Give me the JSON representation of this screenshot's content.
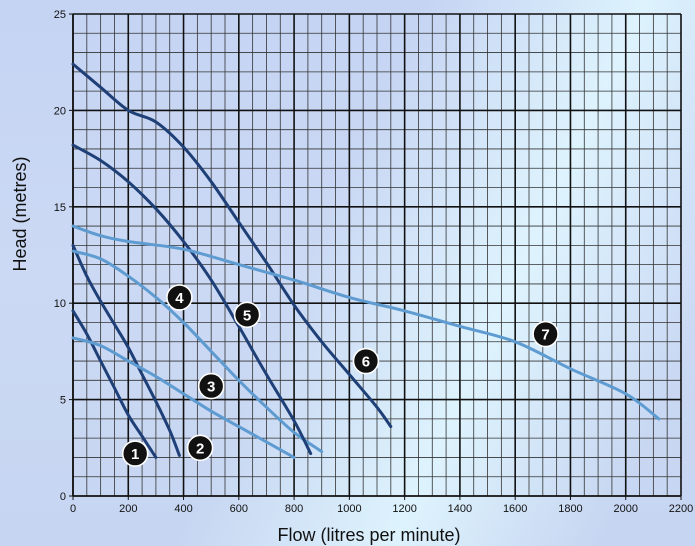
{
  "chart_data": {
    "type": "line",
    "title": "",
    "xlabel": "Flow (litres per minute)",
    "ylabel": "Head (metres)",
    "xlim": [
      0,
      2200
    ],
    "ylim": [
      0,
      25
    ],
    "x_ticks": [
      0,
      200,
      400,
      600,
      800,
      1000,
      1200,
      1400,
      1600,
      1800,
      2000,
      2200
    ],
    "y_ticks": [
      0,
      5,
      10,
      15,
      20,
      25
    ],
    "x_minor_step": 50,
    "y_minor_step": 1,
    "grid": true,
    "legend": "numbered badges on curves",
    "colors": {
      "dark": "#1f3f77",
      "light": "#5e9bd1",
      "grid_major": "#111111",
      "grid_minor": "#333333",
      "badge": "#111111"
    },
    "series": [
      {
        "label": "1",
        "color": "dark",
        "points": [
          [
            0,
            9.6
          ],
          [
            50,
            8.4
          ],
          [
            100,
            7.0
          ],
          [
            150,
            5.6
          ],
          [
            200,
            4.2
          ],
          [
            250,
            3.1
          ],
          [
            300,
            2.0
          ]
        ],
        "badge": [
          225,
          2.2
        ]
      },
      {
        "label": "2",
        "color": "dark",
        "points": [
          [
            0,
            13.0
          ],
          [
            50,
            11.4
          ],
          [
            100,
            10.1
          ],
          [
            150,
            8.9
          ],
          [
            200,
            7.7
          ],
          [
            250,
            6.3
          ],
          [
            300,
            4.9
          ],
          [
            350,
            3.4
          ],
          [
            385,
            2.1
          ]
        ],
        "badge": [
          460,
          2.5
        ]
      },
      {
        "label": "3",
        "color": "light",
        "points": [
          [
            0,
            8.2
          ],
          [
            100,
            7.8
          ],
          [
            200,
            7.0
          ],
          [
            300,
            6.2
          ],
          [
            400,
            5.3
          ],
          [
            500,
            4.4
          ],
          [
            600,
            3.6
          ],
          [
            700,
            2.8
          ],
          [
            800,
            2.0
          ]
        ],
        "badge": [
          500,
          5.7
        ]
      },
      {
        "label": "4",
        "color": "light",
        "points": [
          [
            0,
            12.7
          ],
          [
            100,
            12.3
          ],
          [
            200,
            11.4
          ],
          [
            300,
            10.3
          ],
          [
            400,
            9.0
          ],
          [
            500,
            7.5
          ],
          [
            600,
            6.0
          ],
          [
            700,
            4.6
          ],
          [
            800,
            3.3
          ],
          [
            900,
            2.3
          ]
        ],
        "badge": [
          385,
          10.3
        ]
      },
      {
        "label": "5",
        "color": "dark",
        "points": [
          [
            0,
            18.2
          ],
          [
            100,
            17.4
          ],
          [
            200,
            16.3
          ],
          [
            300,
            14.9
          ],
          [
            400,
            13.2
          ],
          [
            500,
            11.2
          ],
          [
            600,
            8.8
          ],
          [
            700,
            6.3
          ],
          [
            800,
            3.9
          ],
          [
            860,
            2.2
          ]
        ],
        "badge": [
          630,
          9.4
        ]
      },
      {
        "label": "6",
        "color": "dark",
        "points": [
          [
            0,
            22.4
          ],
          [
            100,
            21.2
          ],
          [
            200,
            20.0
          ],
          [
            300,
            19.4
          ],
          [
            400,
            18.1
          ],
          [
            500,
            16.3
          ],
          [
            600,
            14.2
          ],
          [
            700,
            12.1
          ],
          [
            800,
            9.9
          ],
          [
            900,
            8.0
          ],
          [
            1000,
            6.3
          ],
          [
            1100,
            4.6
          ],
          [
            1150,
            3.6
          ]
        ],
        "badge": [
          1060,
          7.0
        ]
      },
      {
        "label": "7",
        "color": "light",
        "points": [
          [
            0,
            14.0
          ],
          [
            100,
            13.5
          ],
          [
            200,
            13.2
          ],
          [
            400,
            12.8
          ],
          [
            600,
            12.0
          ],
          [
            800,
            11.2
          ],
          [
            1000,
            10.3
          ],
          [
            1200,
            9.6
          ],
          [
            1400,
            8.8
          ],
          [
            1600,
            8.0
          ],
          [
            1800,
            6.6
          ],
          [
            2000,
            5.3
          ],
          [
            2120,
            4.0
          ]
        ],
        "badge": [
          1710,
          8.4
        ]
      }
    ]
  }
}
